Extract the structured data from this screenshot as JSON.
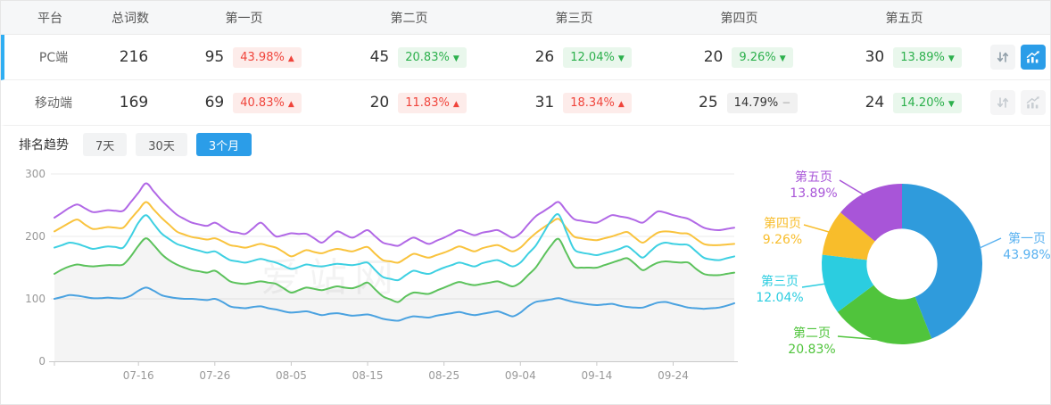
{
  "table": {
    "headers": [
      "平台",
      "总词数",
      "第一页",
      "第二页",
      "第三页",
      "第四页",
      "第五页"
    ],
    "rows": [
      {
        "platform": "PC端",
        "total": "216",
        "active": true,
        "pages": [
          {
            "count": "95",
            "pct": "43.98%",
            "dir": "up",
            "tone": "red"
          },
          {
            "count": "45",
            "pct": "20.83%",
            "dir": "down",
            "tone": "green"
          },
          {
            "count": "26",
            "pct": "12.04%",
            "dir": "down",
            "tone": "green"
          },
          {
            "count": "20",
            "pct": "9.26%",
            "dir": "down",
            "tone": "green"
          },
          {
            "count": "30",
            "pct": "13.89%",
            "dir": "down",
            "tone": "green"
          }
        ]
      },
      {
        "platform": "移动端",
        "total": "169",
        "active": false,
        "pages": [
          {
            "count": "69",
            "pct": "40.83%",
            "dir": "up",
            "tone": "red"
          },
          {
            "count": "20",
            "pct": "11.83%",
            "dir": "up",
            "tone": "red"
          },
          {
            "count": "31",
            "pct": "18.34%",
            "dir": "up",
            "tone": "red"
          },
          {
            "count": "25",
            "pct": "14.79%",
            "dir": "flat",
            "tone": "gray"
          },
          {
            "count": "24",
            "pct": "14.20%",
            "dir": "down",
            "tone": "green"
          }
        ]
      }
    ]
  },
  "trend": {
    "title": "排名趋势",
    "tabs": [
      {
        "label": "7天",
        "active": false
      },
      {
        "label": "30天",
        "active": false
      },
      {
        "label": "3个月",
        "active": true
      }
    ]
  },
  "watermark": "爱站网",
  "chart_data": [
    {
      "type": "line",
      "title": "排名趋势 3个月",
      "grid": true,
      "legend": false,
      "ylim": [
        0,
        300
      ],
      "y_ticks": [
        0,
        100,
        200,
        300
      ],
      "x_tick_labels": [
        "07-16",
        "07-26",
        "08-05",
        "08-15",
        "08-25",
        "09-04",
        "09-14",
        "09-24"
      ],
      "x_tick_indices": [
        11,
        21,
        31,
        41,
        51,
        61,
        71,
        81
      ],
      "series": [
        {
          "name": "第一页",
          "color": "#4aa2e0",
          "area": false,
          "values": [
            100,
            103,
            106,
            105,
            103,
            101,
            101,
            102,
            101,
            101,
            105,
            113,
            118,
            113,
            106,
            103,
            101,
            100,
            100,
            99,
            98,
            100,
            95,
            88,
            86,
            85,
            87,
            88,
            85,
            83,
            80,
            78,
            79,
            80,
            77,
            74,
            76,
            77,
            75,
            73,
            74,
            75,
            72,
            68,
            66,
            65,
            69,
            72,
            71,
            70,
            73,
            75,
            77,
            79,
            76,
            74,
            76,
            78,
            80,
            76,
            72,
            78,
            88,
            95,
            97,
            99,
            101,
            98,
            95,
            93,
            91,
            90,
            91,
            92,
            89,
            87,
            86,
            86,
            90,
            94,
            95,
            92,
            89,
            86,
            85,
            84,
            85,
            86,
            89,
            93
          ]
        },
        {
          "name": "第二页",
          "color": "#5cc25c",
          "area": true,
          "values": [
            140,
            147,
            152,
            155,
            153,
            152,
            153,
            154,
            154,
            155,
            168,
            185,
            197,
            186,
            172,
            162,
            155,
            150,
            146,
            144,
            142,
            145,
            137,
            128,
            125,
            124,
            126,
            128,
            126,
            124,
            117,
            110,
            114,
            118,
            116,
            114,
            117,
            120,
            118,
            117,
            121,
            126,
            115,
            104,
            99,
            95,
            104,
            110,
            109,
            108,
            113,
            118,
            123,
            127,
            124,
            122,
            124,
            126,
            128,
            124,
            120,
            126,
            138,
            150,
            168,
            185,
            196,
            174,
            152,
            150,
            150,
            150,
            154,
            158,
            162,
            165,
            156,
            146,
            152,
            158,
            160,
            159,
            158,
            158,
            148,
            140,
            138,
            138,
            140,
            142
          ]
        },
        {
          "name": "第三页",
          "color": "#3ed0e2",
          "area": false,
          "values": [
            182,
            186,
            190,
            188,
            184,
            180,
            182,
            184,
            183,
            182,
            200,
            222,
            234,
            220,
            205,
            196,
            188,
            184,
            180,
            177,
            174,
            176,
            169,
            162,
            160,
            158,
            161,
            164,
            161,
            158,
            153,
            148,
            151,
            155,
            153,
            152,
            154,
            156,
            155,
            154,
            156,
            158,
            146,
            135,
            132,
            130,
            138,
            145,
            142,
            140,
            145,
            150,
            154,
            158,
            155,
            152,
            157,
            160,
            162,
            157,
            152,
            158,
            172,
            185,
            205,
            225,
            235,
            208,
            180,
            174,
            172,
            170,
            173,
            176,
            180,
            184,
            175,
            166,
            176,
            186,
            190,
            188,
            187,
            186,
            176,
            166,
            163,
            162,
            165,
            168
          ]
        },
        {
          "name": "第四页",
          "color": "#f9c33d",
          "area": false,
          "values": [
            208,
            215,
            222,
            227,
            219,
            212,
            213,
            215,
            214,
            214,
            228,
            242,
            255,
            243,
            230,
            219,
            208,
            203,
            199,
            197,
            195,
            197,
            192,
            186,
            184,
            182,
            185,
            188,
            185,
            182,
            175,
            168,
            173,
            178,
            175,
            173,
            177,
            180,
            178,
            176,
            180,
            183,
            172,
            162,
            160,
            158,
            165,
            172,
            169,
            166,
            170,
            174,
            179,
            184,
            180,
            176,
            181,
            184,
            186,
            181,
            176,
            182,
            194,
            205,
            214,
            222,
            228,
            214,
            200,
            197,
            195,
            194,
            197,
            200,
            204,
            207,
            198,
            190,
            198,
            206,
            208,
            207,
            205,
            204,
            196,
            188,
            186,
            186,
            187,
            188
          ]
        },
        {
          "name": "第五页",
          "color": "#b168e6",
          "area": false,
          "values": [
            230,
            238,
            246,
            251,
            245,
            239,
            240,
            242,
            241,
            241,
            255,
            270,
            285,
            272,
            258,
            246,
            235,
            228,
            222,
            219,
            217,
            222,
            215,
            208,
            206,
            204,
            213,
            222,
            211,
            200,
            202,
            205,
            204,
            204,
            197,
            190,
            199,
            208,
            203,
            198,
            204,
            210,
            200,
            190,
            187,
            185,
            192,
            198,
            193,
            188,
            193,
            198,
            204,
            210,
            206,
            202,
            206,
            208,
            210,
            204,
            198,
            205,
            219,
            232,
            240,
            248,
            255,
            241,
            228,
            225,
            223,
            222,
            228,
            234,
            232,
            230,
            226,
            222,
            231,
            240,
            238,
            234,
            231,
            228,
            221,
            214,
            211,
            210,
            212,
            214
          ]
        }
      ]
    },
    {
      "type": "pie",
      "labels": [
        "第一页",
        "第二页",
        "第三页",
        "第四页",
        "第五页"
      ],
      "values": [
        43.98,
        20.83,
        12.04,
        9.26,
        13.89
      ],
      "display": [
        "43.98%",
        "20.83%",
        "12.04%",
        "9.26%",
        "13.89%"
      ],
      "colors": [
        "#2f9bdc",
        "#50c43c",
        "#2bcde0",
        "#f8bd2b",
        "#a855d8"
      ],
      "label_colors": [
        "#58b1f0",
        "#50c43c",
        "#2bcde0",
        "#f8bd2b",
        "#a855d8"
      ],
      "inner_radius_ratio": 0.44,
      "start_angle": "top",
      "direction": "clockwise"
    }
  ]
}
